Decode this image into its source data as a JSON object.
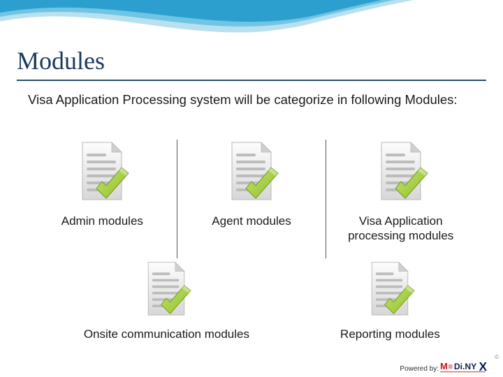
{
  "title": "Modules",
  "intro": "Visa Application Processing system will be categorize in following Modules:",
  "modules_row1": [
    {
      "label": "Admin modules"
    },
    {
      "label": "Agent modules"
    },
    {
      "label": "Visa Application processing modules"
    }
  ],
  "modules_row2": [
    {
      "label": "Onsite communication modules"
    },
    {
      "label": "Reporting modules"
    }
  ],
  "footer": {
    "powered_by": "Powered by:",
    "brand_prefix": "M",
    "brand_equals": "≡",
    "brand_mid": "Di.NY",
    "brand_x": "X",
    "brand_tag": "",
    "copyright": "©"
  },
  "colors": {
    "title": "#1b3a5c",
    "underline": "#2a4d73",
    "text": "#1a1a1a",
    "divider": "#555555",
    "wave_light": "#b8e0ee",
    "wave_mid": "#6fc5e3",
    "wave_dark": "#2c9fcf",
    "doc_body_top": "#fdfdfd",
    "doc_body_bot": "#d7d7d7",
    "doc_border": "#b8b8b8",
    "doc_fold": "#cfcfcf",
    "doc_line": "#bcbcbc",
    "check_light": "#c6e26a",
    "check_dark": "#8fbf2b",
    "check_edge": "#6f9a1f",
    "brand_red": "#c9141d",
    "brand_navy": "#0b1e4a"
  }
}
